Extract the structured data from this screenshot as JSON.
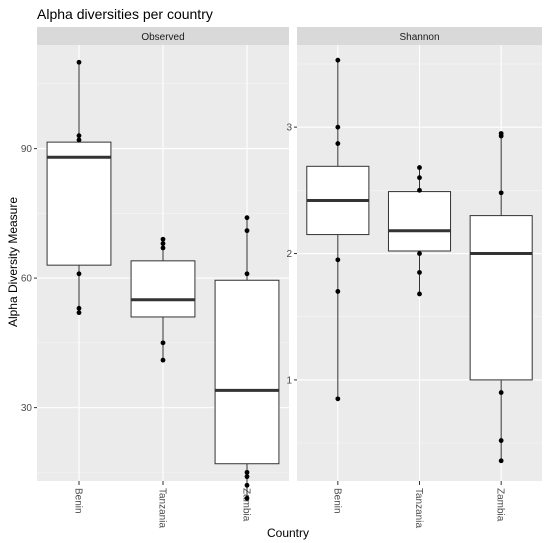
{
  "chart_data": {
    "type": "boxplot",
    "title": "Alpha diversities per country",
    "xlabel": "Country",
    "ylabel": "Alpha Diversity Measure",
    "categories": [
      "Benin",
      "Tanzania",
      "Zambia"
    ],
    "grid": true,
    "panels": [
      {
        "name": "Observed",
        "ylim": [
          13,
          114
        ],
        "yticks": [
          30,
          60,
          90
        ],
        "boxes": [
          {
            "category": "Benin",
            "whisker_low": 52,
            "q1": 63,
            "median": 88,
            "q3": 91.5,
            "whisker_high": 110,
            "points": [
              110,
              93,
              92,
              61,
              53,
              52
            ]
          },
          {
            "category": "Tanzania",
            "whisker_low": 41,
            "q1": 51,
            "median": 55,
            "q3": 64,
            "whisker_high": 69,
            "points": [
              69,
              68,
              67,
              45,
              41
            ]
          },
          {
            "category": "Zambia",
            "whisker_low": 9,
            "q1": 17,
            "median": 34,
            "q3": 59.5,
            "whisker_high": 74,
            "points": [
              74,
              71,
              61,
              15,
              14,
              12,
              9
            ]
          }
        ]
      },
      {
        "name": "Shannon",
        "ylim": [
          0.2,
          3.65
        ],
        "yticks": [
          1,
          2,
          3
        ],
        "boxes": [
          {
            "category": "Benin",
            "whisker_low": 0.85,
            "q1": 2.15,
            "median": 2.42,
            "q3": 2.69,
            "whisker_high": 3.53,
            "points": [
              3.53,
              3.0,
              2.87,
              1.95,
              1.7,
              0.85
            ]
          },
          {
            "category": "Tanzania",
            "whisker_low": 1.68,
            "q1": 2.02,
            "median": 2.18,
            "q3": 2.49,
            "whisker_high": 2.68,
            "points": [
              2.68,
              2.6,
              2.5,
              2.0,
              1.85,
              1.68
            ]
          },
          {
            "category": "Zambia",
            "whisker_low": 0.36,
            "q1": 1.0,
            "median": 2.0,
            "q3": 2.3,
            "whisker_high": 2.95,
            "points": [
              2.95,
              2.93,
              2.48,
              0.9,
              0.52,
              0.36
            ]
          }
        ]
      }
    ]
  }
}
